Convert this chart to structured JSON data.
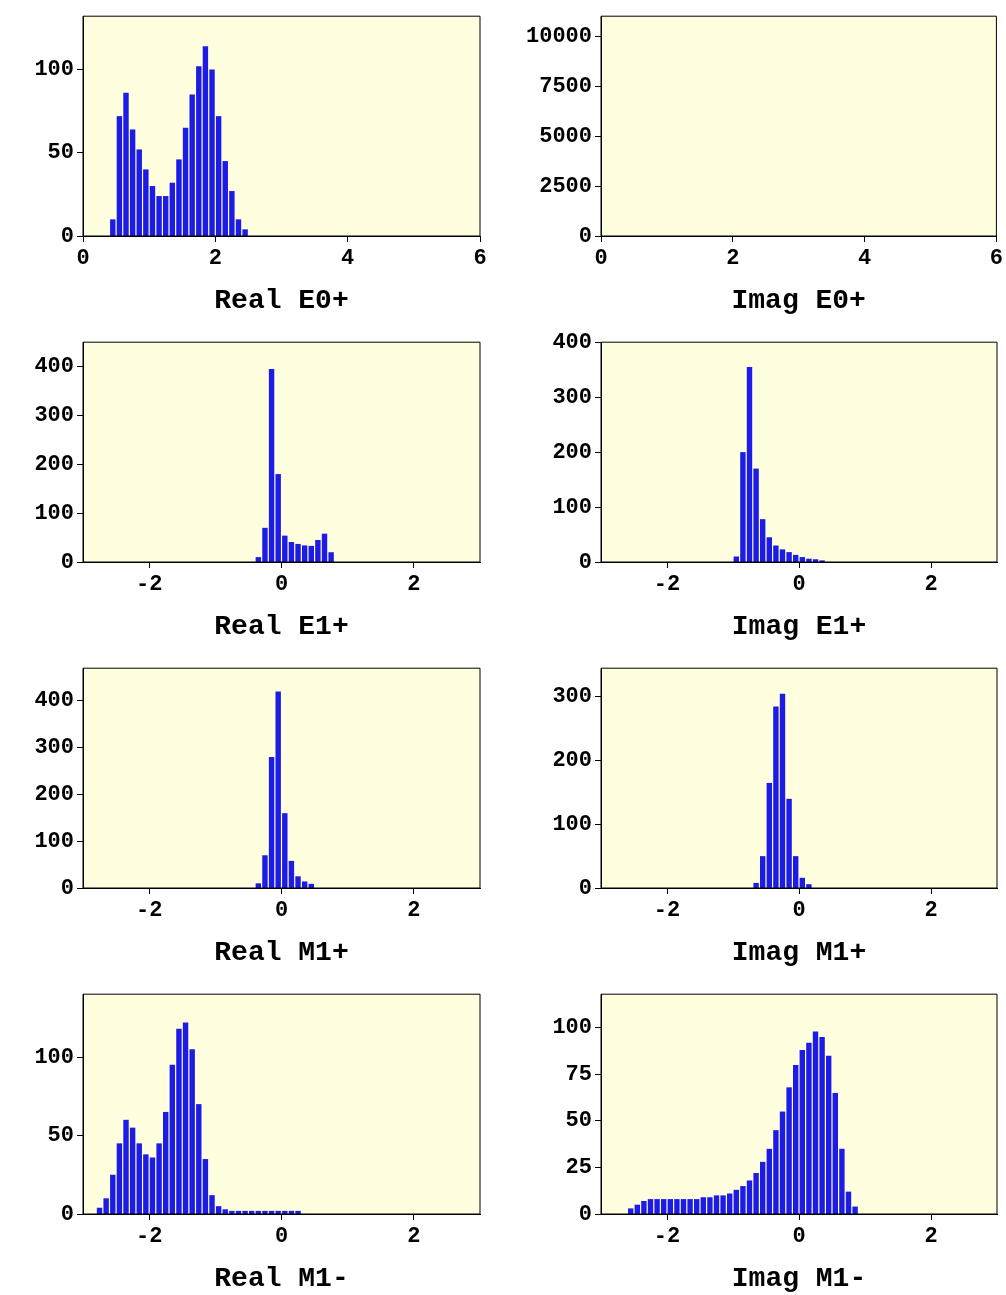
{
  "chart_data": [
    {
      "type": "histogram",
      "xlabel": "Real E0+",
      "color": "#1c1ce6",
      "xlim": [
        0,
        6
      ],
      "xticks": [
        0,
        2,
        4,
        6
      ],
      "ylim": [
        0,
        132
      ],
      "yticks": [
        0,
        50,
        100
      ],
      "grid": false,
      "bins": [
        0.4,
        0.5,
        0.6,
        0.7,
        0.8,
        0.9,
        1.0,
        1.1,
        1.2,
        1.3,
        1.4,
        1.5,
        1.6,
        1.7,
        1.8,
        1.9,
        2.0,
        2.1,
        2.2,
        2.3,
        2.4,
        2.5
      ],
      "values": [
        10,
        72,
        86,
        64,
        52,
        40,
        30,
        24,
        24,
        32,
        46,
        65,
        85,
        102,
        114,
        100,
        72,
        45,
        27,
        10,
        4
      ]
    },
    {
      "type": "histogram",
      "xlabel": "Imag E0+",
      "color": "#1c1ce6",
      "xlim": [
        0,
        6
      ],
      "xticks": [
        0,
        2,
        4,
        6
      ],
      "ylim": [
        0,
        11000
      ],
      "yticks": [
        0,
        2500,
        5000,
        7500,
        10000
      ],
      "grid": false
    },
    {
      "type": "histogram",
      "xlabel": "Real E1+",
      "color": "#1c1ce6",
      "xlim": [
        -3,
        3
      ],
      "xticks": [
        -2,
        0,
        2
      ],
      "ylim": [
        0,
        450
      ],
      "yticks": [
        0,
        100,
        200,
        300,
        400
      ],
      "grid": false,
      "bins": [
        -0.4,
        -0.3,
        -0.2,
        -0.1,
        0,
        0.1,
        0.2,
        0.3,
        0.4,
        0.5,
        0.6,
        0.7,
        0.8
      ],
      "values": [
        10,
        70,
        395,
        180,
        54,
        41,
        37,
        34,
        33,
        45,
        58,
        20
      ]
    },
    {
      "type": "histogram",
      "xlabel": "Imag E1+",
      "color": "#1c1ce6",
      "xlim": [
        -3,
        3
      ],
      "xticks": [
        -2,
        0,
        2
      ],
      "ylim": [
        0,
        400
      ],
      "yticks": [
        0,
        100,
        200,
        300,
        400
      ],
      "grid": false,
      "bins": [
        -1.0,
        -0.9,
        -0.8,
        -0.7,
        -0.6,
        -0.5,
        -0.4,
        -0.3,
        -0.2,
        -0.1,
        0,
        0.1,
        0.2,
        0.3,
        0.4
      ],
      "values": [
        10,
        200,
        355,
        170,
        78,
        45,
        30,
        23,
        18,
        13,
        9,
        6,
        5,
        3
      ]
    },
    {
      "type": "histogram",
      "xlabel": "Real M1+",
      "color": "#1c1ce6",
      "xlim": [
        -3,
        3
      ],
      "xticks": [
        -2,
        0,
        2
      ],
      "ylim": [
        0,
        470
      ],
      "yticks": [
        0,
        100,
        200,
        300,
        400
      ],
      "grid": false,
      "bins": [
        -0.4,
        -0.3,
        -0.2,
        -0.1,
        0,
        0.1,
        0.2,
        0.3,
        0.4,
        0.5
      ],
      "values": [
        10,
        70,
        280,
        420,
        160,
        58,
        25,
        14,
        9
      ]
    },
    {
      "type": "histogram",
      "xlabel": "Imag M1+",
      "color": "#1c1ce6",
      "xlim": [
        -3,
        3
      ],
      "xticks": [
        -2,
        0,
        2
      ],
      "ylim": [
        0,
        345
      ],
      "yticks": [
        0,
        100,
        200,
        300
      ],
      "grid": false,
      "bins": [
        -0.7,
        -0.6,
        -0.5,
        -0.4,
        -0.3,
        -0.2,
        -0.1,
        0,
        0.1,
        0.2
      ],
      "values": [
        8,
        50,
        165,
        285,
        305,
        140,
        50,
        16,
        6
      ]
    },
    {
      "type": "histogram",
      "xlabel": "Real M1-",
      "color": "#1c1ce6",
      "xlim": [
        -3,
        3
      ],
      "xticks": [
        -2,
        0,
        2
      ],
      "ylim": [
        0,
        140
      ],
      "yticks": [
        0,
        50,
        100
      ],
      "grid": false,
      "bins": [
        -2.8,
        -2.7,
        -2.6,
        -2.5,
        -2.4,
        -2.3,
        -2.2,
        -2.1,
        -2.0,
        -1.9,
        -1.8,
        -1.7,
        -1.6,
        -1.5,
        -1.4,
        -1.3,
        -1.2,
        -1.1,
        -1.0,
        -0.9,
        -0.8,
        -0.7,
        -0.6,
        -0.5,
        -0.4,
        -0.3,
        -0.2,
        -0.1,
        0,
        0.1,
        0.2,
        0.3
      ],
      "values": [
        4,
        10,
        25,
        45,
        60,
        55,
        45,
        38,
        36,
        45,
        65,
        95,
        118,
        122,
        105,
        70,
        35,
        12,
        5,
        3,
        2,
        2,
        2,
        2,
        2,
        2,
        2,
        2,
        2,
        2,
        2
      ]
    },
    {
      "type": "histogram",
      "xlabel": "Imag M1-",
      "color": "#1c1ce6",
      "xlim": [
        -3,
        3
      ],
      "xticks": [
        -2,
        0,
        2
      ],
      "ylim": [
        0,
        118
      ],
      "yticks": [
        0,
        25,
        50,
        75,
        100
      ],
      "grid": false,
      "bins": [
        -2.6,
        -2.5,
        -2.4,
        -2.3,
        -2.2,
        -2.1,
        -2.0,
        -1.9,
        -1.8,
        -1.7,
        -1.6,
        -1.5,
        -1.4,
        -1.3,
        -1.2,
        -1.1,
        -1.0,
        -0.9,
        -0.8,
        -0.7,
        -0.6,
        -0.5,
        -0.4,
        -0.3,
        -0.2,
        -0.1,
        0,
        0.1,
        0.2,
        0.3,
        0.4,
        0.5,
        0.6,
        0.7,
        0.8,
        0.9
      ],
      "values": [
        3,
        5,
        7,
        8,
        8,
        8,
        8,
        8,
        8,
        8,
        8,
        9,
        9,
        10,
        10,
        11,
        13,
        15,
        18,
        22,
        28,
        35,
        45,
        55,
        68,
        80,
        88,
        92,
        98,
        95,
        85,
        65,
        35,
        12,
        4
      ]
    }
  ]
}
